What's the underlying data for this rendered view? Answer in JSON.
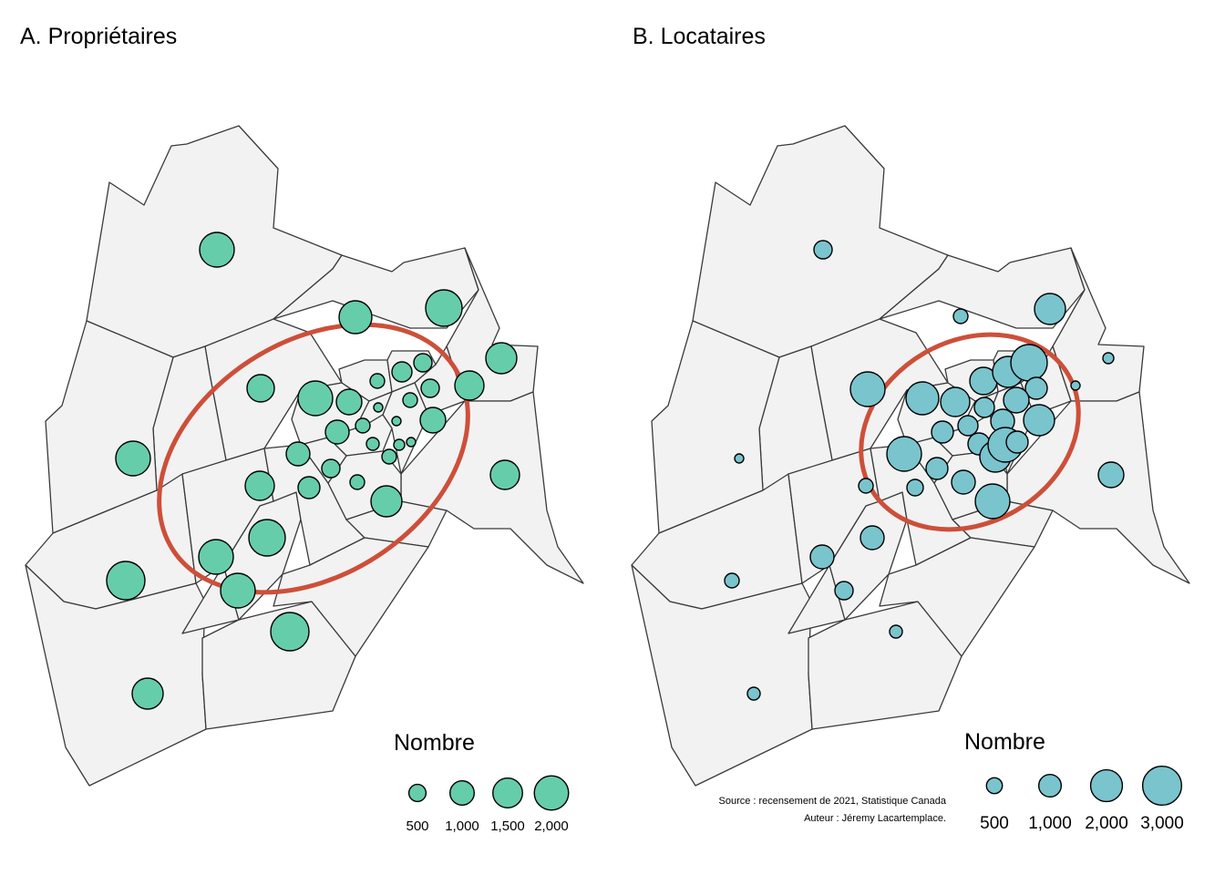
{
  "colors": {
    "owners": "#66cdaa",
    "renters": "#7ac4cd",
    "ellipse": "#cd4f39",
    "tract_fill": "#f2f2f2",
    "tract_stroke": "#3a3a3a"
  },
  "left": {
    "title": "A. Propriétaires",
    "legend": {
      "title": "Nombre",
      "values": [
        500,
        1000,
        1500,
        2000
      ],
      "labels": [
        "500",
        "1,000",
        "1,500",
        "2,000"
      ]
    }
  },
  "right": {
    "title": "B. Locataires",
    "legend": {
      "title": "Nombre",
      "values": [
        500,
        1000,
        2000,
        3000
      ],
      "labels": [
        "500",
        "1,000",
        "2,000",
        "3,000"
      ]
    },
    "source": "Source : recensement de 2021, Statistique Canada",
    "author": "Auteur : Jéremy Lacartemplace."
  }
}
